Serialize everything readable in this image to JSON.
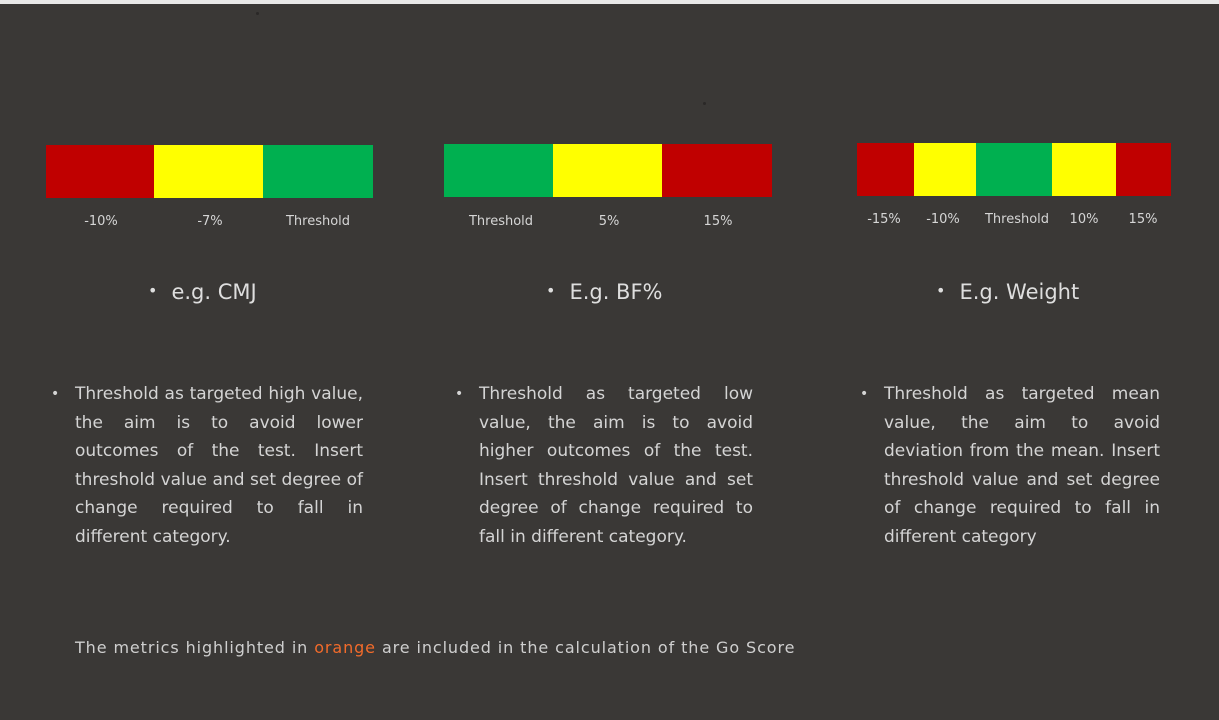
{
  "colors": {
    "background": "#3a3836",
    "red": "#c00000",
    "yellow": "#ffff00",
    "green": "#00b050",
    "highlight": "#f26b2b"
  },
  "panels": [
    {
      "segments": [
        "red",
        "yellow",
        "green"
      ],
      "labels": [
        "-10%",
        "-7%",
        "Threshold"
      ],
      "example": "e.g. CMJ",
      "description": "Threshold as targeted high value, the aim is to avoid lower outcomes of the test. Insert threshold value and set degree of change required to fall in different category."
    },
    {
      "segments": [
        "green",
        "yellow",
        "red"
      ],
      "labels": [
        "Threshold",
        "5%",
        "15%"
      ],
      "example": "E.g. BF%",
      "description": "Threshold as targeted low value, the aim is to avoid higher outcomes of the test. Insert threshold value and set degree of change required to fall in different category."
    },
    {
      "segments": [
        "red",
        "yellow",
        "green",
        "yellow",
        "red"
      ],
      "labels": [
        "-15%",
        "-10%",
        "Threshold",
        "10%",
        "15%"
      ],
      "example": "E.g. Weight",
      "description": "Threshold as targeted mean value, the aim to avoid deviation from the mean. Insert threshold value and set degree of change required to fall in different category"
    }
  ],
  "footer": {
    "before": "The metrics highlighted in",
    "highlight": "orange",
    "after": "are included in the calculation of the Go Score"
  },
  "bullet": "•"
}
